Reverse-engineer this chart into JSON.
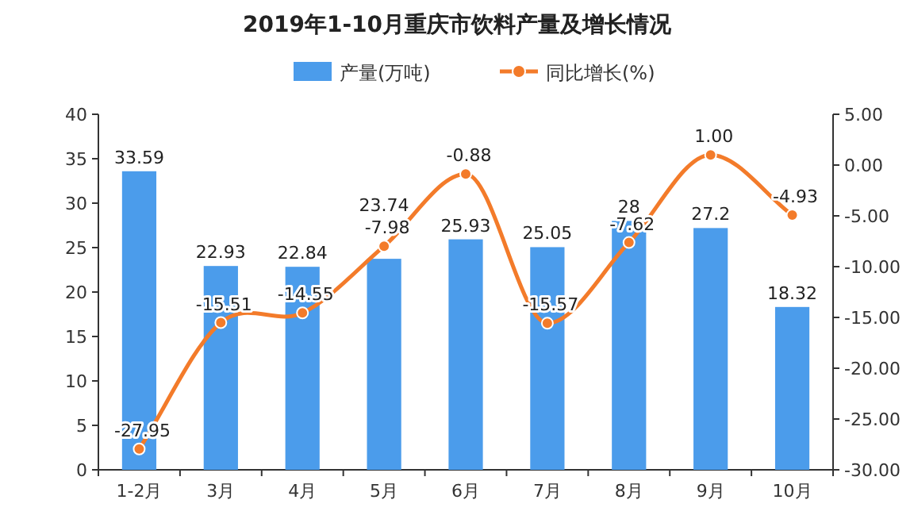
{
  "chart_data": {
    "type": "bar",
    "title": "2019年1-10月重庆市饮料产量及增长情况",
    "categories": [
      "1-2月",
      "3月",
      "4月",
      "5月",
      "6月",
      "7月",
      "8月",
      "9月",
      "10月"
    ],
    "series": [
      {
        "name": "产量(万吨)",
        "color": "#4b9ceb",
        "values": [
          33.59,
          22.93,
          22.84,
          23.74,
          25.93,
          25.05,
          28,
          27.2,
          18.32
        ],
        "value_labels": [
          "33.59",
          "22.93",
          "22.84",
          "23.74",
          "25.93",
          "25.05",
          "28",
          "27.2",
          "18.32"
        ]
      },
      {
        "name": "同比增长(%)",
        "type": "line",
        "axis": "y2",
        "color": "#f37b2a",
        "marker": "circle",
        "values": [
          -27.95,
          -15.51,
          -14.55,
          -7.98,
          -0.88,
          -15.57,
          -7.62,
          1.0,
          -4.93
        ],
        "value_labels": [
          "-27.95",
          "-15.51",
          "-14.55",
          "-7.98",
          "-0.88",
          "-15.57",
          "-7.62",
          "1.00",
          "-4.93"
        ]
      }
    ],
    "ylim": [
      0,
      40
    ],
    "yticks": [
      0,
      5,
      10,
      15,
      20,
      25,
      30,
      35,
      40
    ],
    "y2lim": [
      -30,
      5
    ],
    "y2ticks": [
      {
        "value": 5,
        "label": "5.00"
      },
      {
        "value": 0,
        "label": "0.00"
      },
      {
        "value": -5,
        "label": "-5.00"
      },
      {
        "value": -10,
        "label": "-10.00"
      },
      {
        "value": -15,
        "label": "-15.00"
      },
      {
        "value": -20,
        "label": "-20.00"
      },
      {
        "value": -25,
        "label": "-25.00"
      },
      {
        "value": -30,
        "label": "-30.00"
      }
    ],
    "legend": "top",
    "grid": false
  }
}
